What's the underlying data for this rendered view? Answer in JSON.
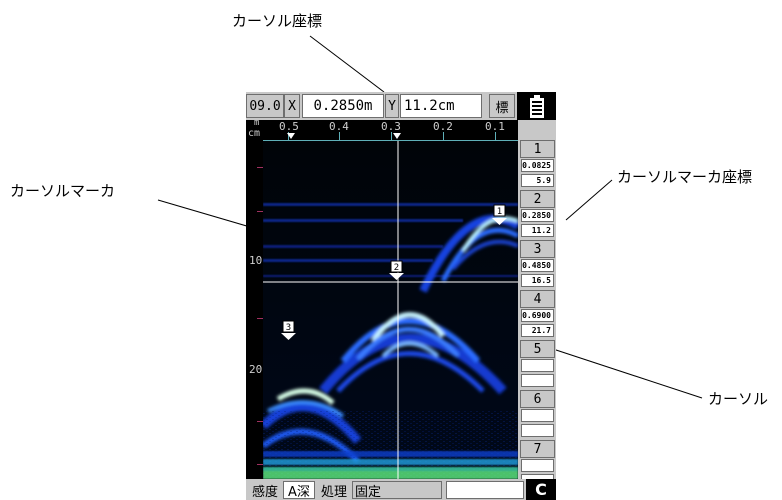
{
  "annotations": {
    "cursor_coord_title": "カーソル座標",
    "cursor_marker": "カーソルマーカ",
    "cursor_marker_coord": "カーソルマーカ座標",
    "cursor": "カーソル"
  },
  "header": {
    "scale_value": "09.0",
    "x_label": "X",
    "x_value": "0.2850m",
    "y_label": "Y",
    "y_value": "11.2cm",
    "marker_button": "標",
    "battery_icon": "battery-icon"
  },
  "ruler": {
    "unit_m": "m",
    "unit_cm": "cm",
    "labels": [
      "0.5",
      "0.4",
      "0.3",
      "0.2",
      "0.1"
    ]
  },
  "depth_axis": {
    "labels": [
      "10",
      "20"
    ]
  },
  "scan": {
    "cursor_marker_label": "2",
    "markers": [
      {
        "label": "1"
      },
      {
        "label": "3"
      }
    ]
  },
  "marker_panel": [
    {
      "num": "1",
      "x": "0.0825",
      "y": "5.9"
    },
    {
      "num": "2",
      "x": "0.2850",
      "y": "11.2"
    },
    {
      "num": "3",
      "x": "0.4850",
      "y": "16.5"
    },
    {
      "num": "4",
      "x": "0.6900",
      "y": "21.7"
    },
    {
      "num": "5",
      "x": "",
      "y": ""
    },
    {
      "num": "6",
      "x": "",
      "y": ""
    },
    {
      "num": "7",
      "x": "",
      "y": ""
    }
  ],
  "statusbar": {
    "sensitivity": "感度",
    "a_depth": "A深",
    "processing": "処理",
    "fixed": "固定",
    "blank": "",
    "clear_button": "C"
  }
}
